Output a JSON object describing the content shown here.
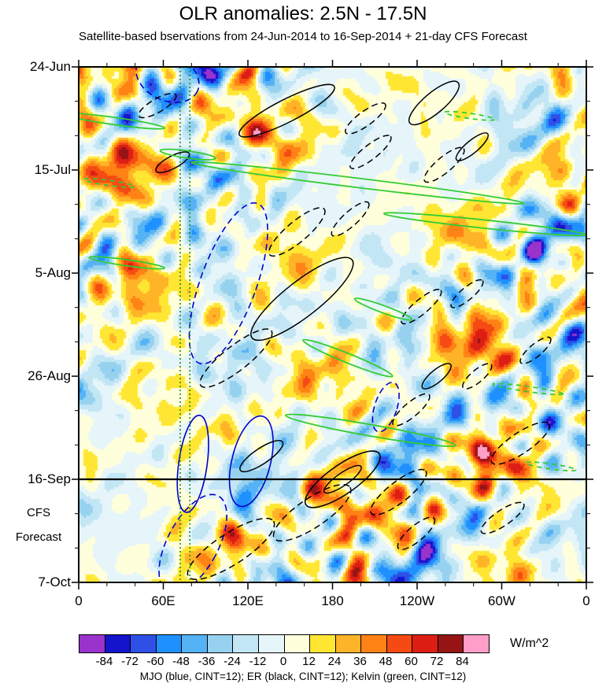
{
  "chart_data": {
    "type": "heatmap",
    "title": "OLR anomalies: 2.5N - 17.5N",
    "subtitle": "Satellite-based bservations from 24-Jun-2014 to 16-Sep-2014 + 21-day CFS Forecast",
    "legend_text": "MJO (blue, CINT=12); ER (black, CINT=12); Kelvin (green, CINT=12)",
    "unit": "W/m^2",
    "forecast_label": [
      "CFS",
      "Forecast"
    ],
    "x_axis": {
      "range_deg": [
        0,
        360
      ],
      "ticks": [
        {
          "label": "0",
          "f": 0
        },
        {
          "label": "60E",
          "f": 0.1667
        },
        {
          "label": "120E",
          "f": 0.3333
        },
        {
          "label": "180",
          "f": 0.5
        },
        {
          "label": "120W",
          "f": 0.6667
        },
        {
          "label": "60W",
          "f": 0.8333
        },
        {
          "label": "0",
          "f": 1
        }
      ]
    },
    "y_axis": {
      "start": "24-Jun",
      "end": "7-Oct",
      "ticks": [
        {
          "label": "24-Jun",
          "f": 0
        },
        {
          "label": "15-Jul",
          "f": 0.2
        },
        {
          "label": "5-Aug",
          "f": 0.4
        },
        {
          "label": "26-Aug",
          "f": 0.6
        },
        {
          "label": "16-Sep",
          "f": 0.8
        },
        {
          "label": "7-Oct",
          "f": 1
        }
      ]
    },
    "reference_lines": {
      "forecast_start": {
        "f": 0.8,
        "label": "16-Sep",
        "color": "#000000"
      },
      "vertical_dotted": [
        {
          "f": 0.2,
          "color": "#1E8C1E"
        },
        {
          "f": 0.219,
          "color": "#1E8C1E"
        }
      ]
    },
    "colorbar": {
      "levels": [
        -84,
        -72,
        -60,
        -48,
        -36,
        -24,
        -12,
        0,
        12,
        24,
        36,
        48,
        60,
        72,
        84
      ],
      "colors": [
        "#9933CC",
        "#1414CC",
        "#2E50E6",
        "#1E90FF",
        "#55B2F5",
        "#96D2F0",
        "#C3E6F5",
        "#E6F5FA",
        "#FFFFDC",
        "#FFE632",
        "#FFB428",
        "#FF8214",
        "#F54A14",
        "#DC1E14",
        "#961414",
        "#FF9EC8"
      ]
    },
    "contour_colors": {
      "MJO": "#0000CD",
      "ER": "#000000",
      "Kelvin": "#33CC33"
    },
    "contour_interval": 12,
    "wave_contours": [
      {
        "wave": "MJO",
        "style": "dashed",
        "cx": 0.175,
        "cy": 0.02,
        "rx": 0.065,
        "ry": 0.045,
        "angle": 25
      },
      {
        "wave": "MJO",
        "style": "dashed",
        "cx": 0.295,
        "cy": 0.42,
        "rx": 0.055,
        "ry": 0.165,
        "angle": 20
      },
      {
        "wave": "MJO",
        "style": "solid",
        "cx": 0.225,
        "cy": 0.77,
        "rx": 0.028,
        "ry": 0.095,
        "angle": 8
      },
      {
        "wave": "MJO",
        "style": "solid",
        "cx": 0.34,
        "cy": 0.765,
        "rx": 0.038,
        "ry": 0.09,
        "angle": 14
      },
      {
        "wave": "MJO",
        "style": "dashed",
        "cx": 0.225,
        "cy": 0.925,
        "rx": 0.05,
        "ry": 0.105,
        "angle": 28
      },
      {
        "wave": "MJO",
        "style": "dashed",
        "cx": 0.605,
        "cy": 0.66,
        "rx": 0.022,
        "ry": 0.05,
        "angle": 18
      },
      {
        "wave": "ER",
        "style": "solid",
        "cx": 0.41,
        "cy": 0.085,
        "rx": 0.105,
        "ry": 0.022,
        "angle": -27
      },
      {
        "wave": "ER",
        "style": "dashed",
        "cx": 0.155,
        "cy": 0.075,
        "rx": 0.042,
        "ry": 0.013,
        "angle": -30
      },
      {
        "wave": "ER",
        "style": "solid",
        "cx": 0.7,
        "cy": 0.07,
        "rx": 0.062,
        "ry": 0.02,
        "angle": -40
      },
      {
        "wave": "ER",
        "style": "dashed",
        "cx": 0.565,
        "cy": 0.1,
        "rx": 0.048,
        "ry": 0.014,
        "angle": -36
      },
      {
        "wave": "ER",
        "style": "solid",
        "cx": 0.185,
        "cy": 0.185,
        "rx": 0.037,
        "ry": 0.012,
        "angle": -28
      },
      {
        "wave": "ER",
        "style": "dashed",
        "cx": 0.575,
        "cy": 0.165,
        "rx": 0.05,
        "ry": 0.014,
        "angle": -38
      },
      {
        "wave": "ER",
        "style": "dashed",
        "cx": 0.72,
        "cy": 0.19,
        "rx": 0.05,
        "ry": 0.015,
        "angle": -40
      },
      {
        "wave": "ER",
        "style": "solid",
        "cx": 0.775,
        "cy": 0.155,
        "rx": 0.04,
        "ry": 0.012,
        "angle": -40
      },
      {
        "wave": "ER",
        "style": "dashed",
        "cx": 0.43,
        "cy": 0.32,
        "rx": 0.07,
        "ry": 0.02,
        "angle": -40
      },
      {
        "wave": "ER",
        "style": "dashed",
        "cx": 0.535,
        "cy": 0.295,
        "rx": 0.048,
        "ry": 0.014,
        "angle": -42
      },
      {
        "wave": "ER",
        "style": "solid",
        "cx": 0.44,
        "cy": 0.45,
        "rx": 0.125,
        "ry": 0.034,
        "angle": -38
      },
      {
        "wave": "ER",
        "style": "dashed",
        "cx": 0.31,
        "cy": 0.565,
        "rx": 0.088,
        "ry": 0.024,
        "angle": -38
      },
      {
        "wave": "ER",
        "style": "dashed",
        "cx": 0.675,
        "cy": 0.465,
        "rx": 0.05,
        "ry": 0.014,
        "angle": -40
      },
      {
        "wave": "ER",
        "style": "dashed",
        "cx": 0.765,
        "cy": 0.44,
        "rx": 0.04,
        "ry": 0.012,
        "angle": -40
      },
      {
        "wave": "ER",
        "style": "solid",
        "cx": 0.705,
        "cy": 0.6,
        "rx": 0.036,
        "ry": 0.012,
        "angle": -40
      },
      {
        "wave": "ER",
        "style": "dashed",
        "cx": 0.785,
        "cy": 0.6,
        "rx": 0.036,
        "ry": 0.012,
        "angle": -40
      },
      {
        "wave": "ER",
        "style": "dashed",
        "cx": 0.655,
        "cy": 0.665,
        "rx": 0.046,
        "ry": 0.014,
        "angle": -40
      },
      {
        "wave": "ER",
        "style": "solid",
        "cx": 0.36,
        "cy": 0.755,
        "rx": 0.05,
        "ry": 0.015,
        "angle": -34
      },
      {
        "wave": "ER",
        "style": "solid",
        "cx": 0.52,
        "cy": 0.8,
        "rx": 0.088,
        "ry": 0.028,
        "angle": -35
      },
      {
        "wave": "ER",
        "style": "solid",
        "cx": 0.52,
        "cy": 0.8,
        "rx": 0.044,
        "ry": 0.012,
        "angle": -35
      },
      {
        "wave": "ER",
        "style": "dashed",
        "cx": 0.46,
        "cy": 0.865,
        "rx": 0.09,
        "ry": 0.028,
        "angle": -34
      },
      {
        "wave": "ER",
        "style": "dashed",
        "cx": 0.63,
        "cy": 0.825,
        "rx": 0.068,
        "ry": 0.02,
        "angle": -38
      },
      {
        "wave": "ER",
        "style": "dashed",
        "cx": 0.3,
        "cy": 0.935,
        "rx": 0.1,
        "ry": 0.03,
        "angle": -33
      },
      {
        "wave": "ER",
        "style": "dashed",
        "cx": 0.665,
        "cy": 0.905,
        "rx": 0.046,
        "ry": 0.015,
        "angle": -40
      },
      {
        "wave": "ER",
        "style": "dashed",
        "cx": 0.87,
        "cy": 0.73,
        "rx": 0.068,
        "ry": 0.02,
        "angle": -34
      },
      {
        "wave": "ER",
        "style": "dashed",
        "cx": 0.835,
        "cy": 0.875,
        "rx": 0.05,
        "ry": 0.015,
        "angle": -34
      },
      {
        "wave": "ER",
        "style": "dashed",
        "cx": 0.9,
        "cy": 0.55,
        "rx": 0.038,
        "ry": 0.012,
        "angle": -40
      },
      {
        "wave": "Kelvin",
        "style": "solid",
        "cx": 0.07,
        "cy": 0.105,
        "rx": 0.1,
        "ry": 0.007,
        "angle": 8
      },
      {
        "wave": "Kelvin",
        "style": "solid",
        "cx": 0.215,
        "cy": 0.17,
        "rx": 0.055,
        "ry": 0.007,
        "angle": 8
      },
      {
        "wave": "Kelvin",
        "style": "solid",
        "cx": 0.55,
        "cy": 0.225,
        "rx": 0.33,
        "ry": 0.009,
        "angle": 7
      },
      {
        "wave": "Kelvin",
        "style": "solid",
        "cx": 0.8,
        "cy": 0.305,
        "rx": 0.2,
        "ry": 0.008,
        "angle": 6
      },
      {
        "wave": "Kelvin",
        "style": "solid",
        "cx": 0.095,
        "cy": 0.38,
        "rx": 0.075,
        "ry": 0.006,
        "angle": 8
      },
      {
        "wave": "Kelvin",
        "style": "dashed",
        "cx": 0.06,
        "cy": 0.225,
        "rx": 0.05,
        "ry": 0.005,
        "angle": 8
      },
      {
        "wave": "Kelvin",
        "style": "solid",
        "cx": 0.6,
        "cy": 0.47,
        "rx": 0.06,
        "ry": 0.007,
        "angle": 20
      },
      {
        "wave": "Kelvin",
        "style": "solid",
        "cx": 0.53,
        "cy": 0.565,
        "rx": 0.095,
        "ry": 0.009,
        "angle": 22
      },
      {
        "wave": "Kelvin",
        "style": "solid",
        "cx": 0.575,
        "cy": 0.705,
        "rx": 0.17,
        "ry": 0.011,
        "angle": 10
      },
      {
        "wave": "Kelvin",
        "style": "dashed",
        "cx": 0.885,
        "cy": 0.625,
        "rx": 0.07,
        "ry": 0.005,
        "angle": 8
      },
      {
        "wave": "Kelvin",
        "style": "dashed",
        "cx": 0.93,
        "cy": 0.775,
        "rx": 0.05,
        "ry": 0.005,
        "angle": 8
      },
      {
        "wave": "Kelvin",
        "style": "dashed",
        "cx": 0.77,
        "cy": 0.095,
        "rx": 0.05,
        "ry": 0.005,
        "angle": 8
      }
    ]
  }
}
